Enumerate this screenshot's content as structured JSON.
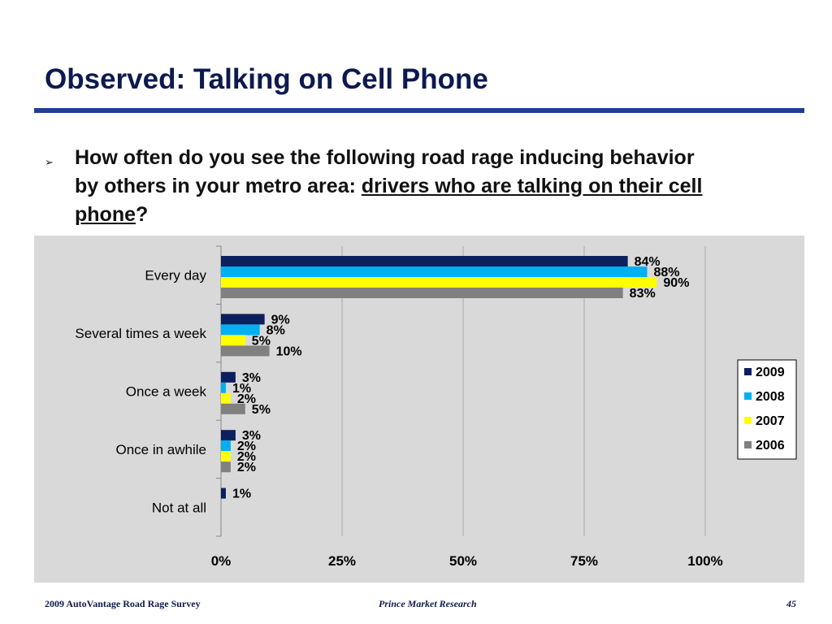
{
  "slide": {
    "title": "Observed: Talking on Cell Phone",
    "bullet_icon": "arrow-bullet-icon",
    "bullet_glyph": "➢",
    "question_line1": "How often do you see the following road rage inducing behavior",
    "question_line2_prefix": "by others in your metro area: ",
    "question_line2_underlined": "drivers who are talking on their cell",
    "question_line3_underlined": "phone",
    "question_line3_suffix": "?"
  },
  "footer": {
    "left": "2009 AutoVantage Road Rage Survey",
    "center": "Prince Market Research",
    "page": "45"
  },
  "colors": {
    "title": "#0d1a4f",
    "rule": "#1f3f8f",
    "panel_bg": "#d9d9d9",
    "gridline": "#aaaaaa",
    "axis": "#888888"
  },
  "chart_data": {
    "type": "bar",
    "orientation": "horizontal",
    "categories": [
      "Every day",
      "Several times a week",
      "Once a week",
      "Once in awhile",
      "Not at all"
    ],
    "series": [
      {
        "name": "2009",
        "color": "#0c1f5e",
        "values": [
          84,
          9,
          3,
          3,
          1
        ],
        "labels": [
          "84%",
          "9%",
          "3%",
          "3%",
          "1%"
        ]
      },
      {
        "name": "2008",
        "color": "#00b0f0",
        "values": [
          88,
          8,
          1,
          2,
          null
        ],
        "labels": [
          "88%",
          "8%",
          "1%",
          "2%",
          ""
        ]
      },
      {
        "name": "2007",
        "color": "#ffff00",
        "values": [
          90,
          5,
          2,
          2,
          null
        ],
        "labels": [
          "90%",
          "5%",
          "2%",
          "2%",
          ""
        ]
      },
      {
        "name": "2006",
        "color": "#808080",
        "values": [
          83,
          10,
          5,
          2,
          null
        ],
        "labels": [
          "83%",
          "10%",
          "5%",
          "2%",
          ""
        ]
      }
    ],
    "x_ticks": [
      "0%",
      "25%",
      "50%",
      "75%",
      "100%"
    ],
    "xlim": [
      0,
      100
    ],
    "grid": true,
    "legend_position": "right"
  }
}
